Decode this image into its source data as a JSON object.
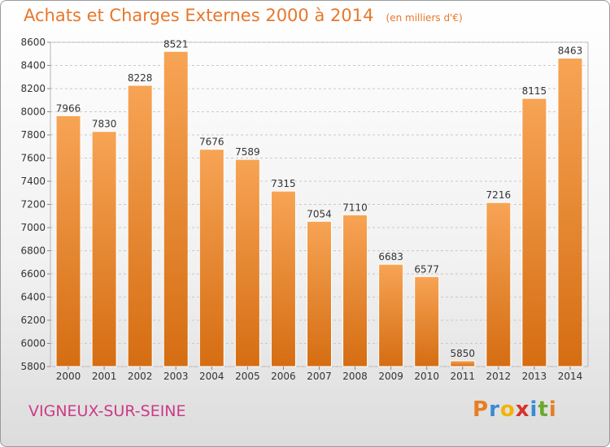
{
  "title": "Achats et Charges Externes 2000 à 2014",
  "unit_note": "(en milliers d'€)",
  "place": "VIGNEUX-SUR-SEINE",
  "logo": {
    "letters": [
      "P",
      "r",
      "o",
      "x",
      "i",
      "t",
      "i"
    ],
    "colors": [
      "#e67e22",
      "#3a8ad6",
      "#f2b400",
      "#d8322c",
      "#3a8ad6",
      "#6aaa2b",
      "#e67e22"
    ]
  },
  "colors": {
    "bar_top": "#f7a455",
    "bar_bottom": "#d56d12",
    "grid": "#c8c8c8"
  },
  "chart_data": {
    "type": "bar",
    "title": "Achats et Charges Externes 2000 à 2014",
    "categories": [
      "2000",
      "2001",
      "2002",
      "2003",
      "2004",
      "2005",
      "2006",
      "2007",
      "2008",
      "2009",
      "2010",
      "2011",
      "2012",
      "2013",
      "2014"
    ],
    "values": [
      7966,
      7830,
      8228,
      8521,
      7676,
      7589,
      7315,
      7054,
      7110,
      6683,
      6577,
      5850,
      7216,
      8115,
      8463
    ],
    "ylim": [
      5800,
      8600
    ],
    "yticks": [
      5800,
      6000,
      6200,
      6400,
      6600,
      6800,
      7000,
      7200,
      7400,
      7600,
      7800,
      8000,
      8200,
      8400,
      8600
    ],
    "grid": true,
    "xlabel": "",
    "ylabel": ""
  }
}
